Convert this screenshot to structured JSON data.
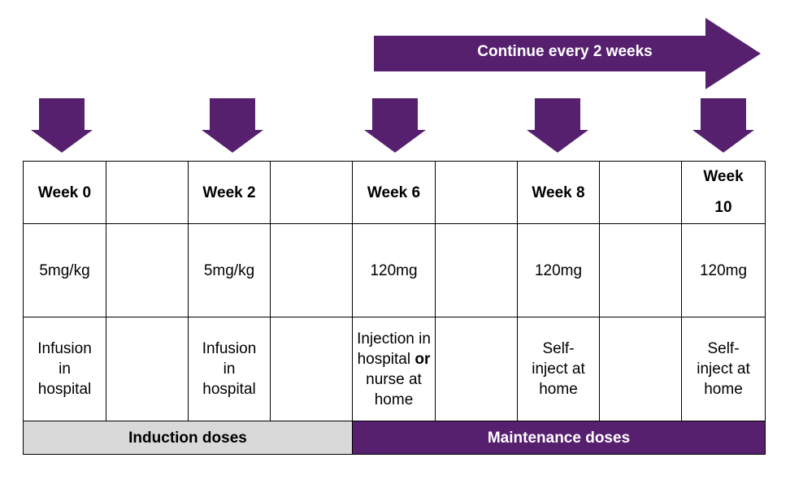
{
  "banner": {
    "text": "Continue every 2 weeks"
  },
  "colors": {
    "accent": "#56206f",
    "induction_bg": "#d9d9d9",
    "border": "#000000"
  },
  "weeks": [
    "Week 0",
    "Week 2",
    "Week 6",
    "Week 8",
    "Week 10"
  ],
  "doses": [
    "5mg/kg",
    "5mg/kg",
    "120mg",
    "120mg",
    "120mg"
  ],
  "methods": [
    "Infusion in hospital",
    "Infusion in hospital",
    {
      "pre": "Injection in hospital",
      "bold": "or",
      "post": "nurse at home"
    },
    "Self-inject at home",
    "Self-inject at home"
  ],
  "phases": {
    "induction": "Induction doses",
    "maintenance": "Maintenance doses"
  }
}
